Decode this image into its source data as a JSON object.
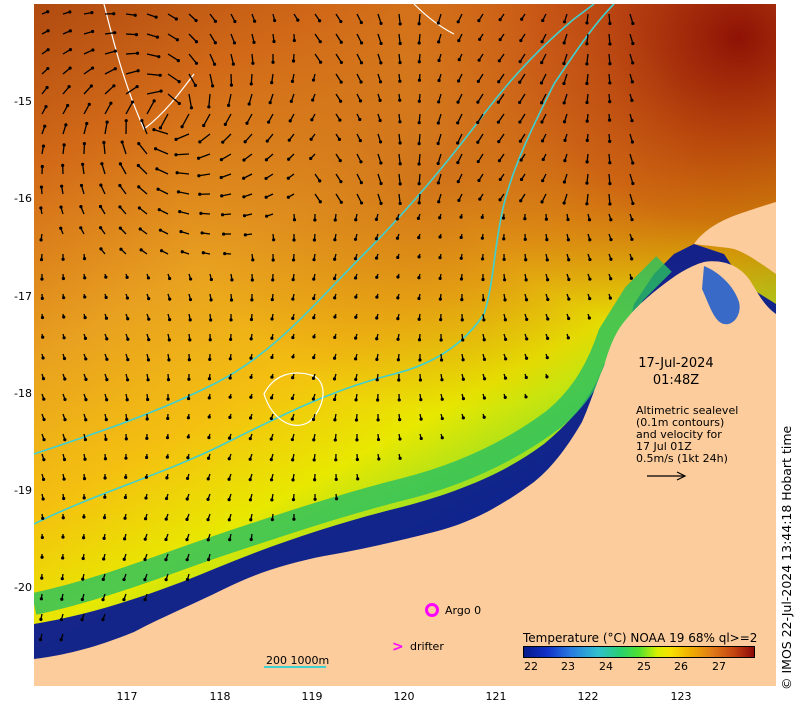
{
  "map": {
    "lat_ticks": [
      "-15",
      "-16",
      "-17",
      "-18",
      "-19",
      "-20"
    ],
    "lon_ticks": [
      "117",
      "118",
      "119",
      "120",
      "121",
      "122",
      "123"
    ]
  },
  "timestamp": {
    "date": "17-Jul-2024",
    "time": "01:48Z"
  },
  "altimetry_legend": {
    "line1": "Altimetric sealevel",
    "line2": "(0.1m contours)",
    "line3": "and velocity for",
    "line4": "17 Jul 01Z",
    "line5": "0.5m/s (1kt 24h)"
  },
  "credit": "© IMOS 22-Jul-2024 13:44:18 Hobart time",
  "markers": {
    "argo": "Argo 0",
    "drifter": "drifter"
  },
  "contour_legend": "200  1000m",
  "colorbar": {
    "title": "Temperature (°C) NOAA 19 68% ql>=2",
    "ticks": [
      "22",
      "23",
      "24",
      "25",
      "26",
      "27"
    ]
  },
  "colors": {
    "land": "#fccc9c",
    "bathymetry": "#40d0d0",
    "marker": "#ff00ff"
  }
}
